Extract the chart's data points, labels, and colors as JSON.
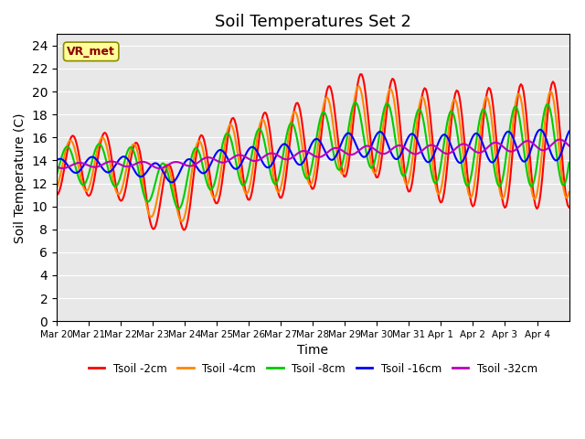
{
  "title": "Soil Temperatures Set 2",
  "xlabel": "Time",
  "ylabel": "Soil Temperature (C)",
  "ylim": [
    0,
    25
  ],
  "yticks": [
    0,
    2,
    4,
    6,
    8,
    10,
    12,
    14,
    16,
    18,
    20,
    22,
    24
  ],
  "series": {
    "Tsoil -2cm": {
      "color": "#FF0000",
      "lw": 1.5
    },
    "Tsoil -4cm": {
      "color": "#FF8800",
      "lw": 1.5
    },
    "Tsoil -8cm": {
      "color": "#00CC00",
      "lw": 1.5
    },
    "Tsoil -16cm": {
      "color": "#0000FF",
      "lw": 1.5
    },
    "Tsoil -32cm": {
      "color": "#BB00BB",
      "lw": 1.5
    }
  },
  "xtick_labels": [
    "Mar 20",
    "Mar 21",
    "Mar 22",
    "Mar 23",
    "Mar 24",
    "Mar 25",
    "Mar 26",
    "Mar 27",
    "Mar 28",
    "Mar 29",
    "Mar 30",
    "Mar 31",
    "Apr 1",
    "Apr 2",
    "Apr 3",
    "Apr 4"
  ],
  "bg_color": "#E8E8E8",
  "annotation_text": "VR_met",
  "annotation_box_color": "#FFFF99",
  "annotation_text_color": "#8B0000",
  "title_fontsize": 13,
  "label_fontsize": 10
}
